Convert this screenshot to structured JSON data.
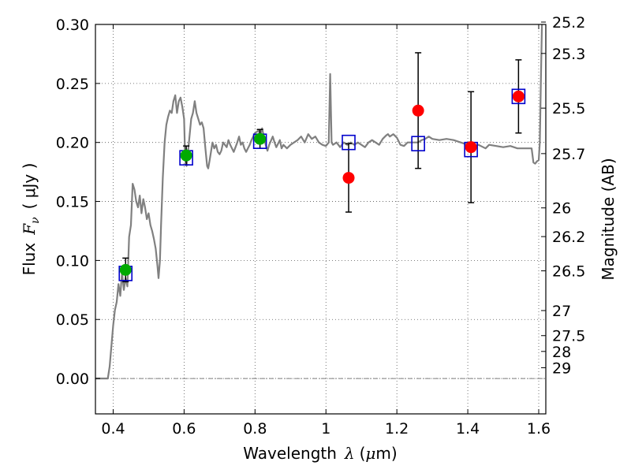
{
  "chart_data": {
    "type": "scatter",
    "xlabel": {
      "text": "Wavelength",
      "symbol": "λ",
      "unit_prefix": "(",
      "unit_math": "μ",
      "unit_text": "m)"
    },
    "ylabel": {
      "text": "Flux",
      "symbol": "F",
      "subscript": "ν",
      "unit": "( μJy )"
    },
    "ylabel_right": "Magnitude (AB)",
    "xlim": [
      0.35,
      1.62
    ],
    "ylim": [
      -0.03,
      0.3
    ],
    "grid": true,
    "x_ticks": [
      {
        "value": 0.4,
        "label": "0.4"
      },
      {
        "value": 0.6,
        "label": "0.6"
      },
      {
        "value": 0.8,
        "label": "0.8"
      },
      {
        "value": 1.0,
        "label": "1"
      },
      {
        "value": 1.2,
        "label": "1.2"
      },
      {
        "value": 1.4,
        "label": "1.4"
      },
      {
        "value": 1.6,
        "label": "1.6"
      }
    ],
    "y_ticks": [
      {
        "value": 0.0,
        "label": "0.00"
      },
      {
        "value": 0.05,
        "label": "0.05"
      },
      {
        "value": 0.1,
        "label": "0.10"
      },
      {
        "value": 0.15,
        "label": "0.15"
      },
      {
        "value": 0.2,
        "label": "0.20"
      },
      {
        "value": 0.25,
        "label": "0.25"
      },
      {
        "value": 0.3,
        "label": "0.30"
      }
    ],
    "mag_ticks": [
      {
        "mag": 25.2,
        "label": "25.2"
      },
      {
        "mag": 25.3,
        "label": "25.3"
      },
      {
        "mag": 25.5,
        "label": "25.5"
      },
      {
        "mag": 25.7,
        "label": "25.7"
      },
      {
        "mag": 26.0,
        "label": "26"
      },
      {
        "mag": 26.2,
        "label": "26.2"
      },
      {
        "mag": 26.5,
        "label": "26.5"
      },
      {
        "mag": 27.0,
        "label": "27"
      },
      {
        "mag": 27.5,
        "label": "27.5"
      },
      {
        "mag": 28.0,
        "label": "28"
      },
      {
        "mag": 29.0,
        "label": "29"
      }
    ],
    "zero_line": 0.0,
    "colors": {
      "model": "#808080",
      "model_points": "#0000cc",
      "optical": "#00aa00",
      "nir": "#ff0000",
      "errorbar": "#000000",
      "grid": "#555555"
    },
    "model_spectrum": [
      [
        0.35,
        0.0
      ],
      [
        0.385,
        0.0
      ],
      [
        0.39,
        0.01
      ],
      [
        0.4,
        0.045
      ],
      [
        0.405,
        0.058
      ],
      [
        0.41,
        0.065
      ],
      [
        0.415,
        0.08
      ],
      [
        0.42,
        0.07
      ],
      [
        0.425,
        0.09
      ],
      [
        0.43,
        0.075
      ],
      [
        0.435,
        0.085
      ],
      [
        0.44,
        0.078
      ],
      [
        0.445,
        0.12
      ],
      [
        0.45,
        0.13
      ],
      [
        0.455,
        0.165
      ],
      [
        0.46,
        0.16
      ],
      [
        0.465,
        0.15
      ],
      [
        0.47,
        0.145
      ],
      [
        0.475,
        0.155
      ],
      [
        0.48,
        0.14
      ],
      [
        0.485,
        0.152
      ],
      [
        0.49,
        0.145
      ],
      [
        0.495,
        0.135
      ],
      [
        0.5,
        0.14
      ],
      [
        0.505,
        0.13
      ],
      [
        0.51,
        0.125
      ],
      [
        0.515,
        0.118
      ],
      [
        0.52,
        0.11
      ],
      [
        0.525,
        0.095
      ],
      [
        0.528,
        0.085
      ],
      [
        0.532,
        0.1
      ],
      [
        0.535,
        0.13
      ],
      [
        0.54,
        0.17
      ],
      [
        0.545,
        0.2
      ],
      [
        0.55,
        0.215
      ],
      [
        0.555,
        0.222
      ],
      [
        0.56,
        0.227
      ],
      [
        0.565,
        0.225
      ],
      [
        0.57,
        0.235
      ],
      [
        0.575,
        0.24
      ],
      [
        0.58,
        0.225
      ],
      [
        0.585,
        0.235
      ],
      [
        0.59,
        0.238
      ],
      [
        0.595,
        0.23
      ],
      [
        0.6,
        0.22
      ],
      [
        0.603,
        0.185
      ],
      [
        0.607,
        0.18
      ],
      [
        0.612,
        0.195
      ],
      [
        0.62,
        0.22
      ],
      [
        0.625,
        0.225
      ],
      [
        0.63,
        0.235
      ],
      [
        0.635,
        0.225
      ],
      [
        0.64,
        0.22
      ],
      [
        0.645,
        0.215
      ],
      [
        0.65,
        0.217
      ],
      [
        0.655,
        0.212
      ],
      [
        0.66,
        0.195
      ],
      [
        0.665,
        0.18
      ],
      [
        0.668,
        0.178
      ],
      [
        0.672,
        0.185
      ],
      [
        0.68,
        0.2
      ],
      [
        0.685,
        0.195
      ],
      [
        0.69,
        0.198
      ],
      [
        0.695,
        0.192
      ],
      [
        0.7,
        0.19
      ],
      [
        0.705,
        0.193
      ],
      [
        0.71,
        0.2
      ],
      [
        0.715,
        0.198
      ],
      [
        0.72,
        0.196
      ],
      [
        0.725,
        0.202
      ],
      [
        0.73,
        0.198
      ],
      [
        0.735,
        0.195
      ],
      [
        0.74,
        0.192
      ],
      [
        0.745,
        0.196
      ],
      [
        0.75,
        0.2
      ],
      [
        0.755,
        0.205
      ],
      [
        0.76,
        0.198
      ],
      [
        0.765,
        0.2
      ],
      [
        0.77,
        0.195
      ],
      [
        0.775,
        0.192
      ],
      [
        0.78,
        0.195
      ],
      [
        0.785,
        0.198
      ],
      [
        0.79,
        0.202
      ],
      [
        0.8,
        0.208
      ],
      [
        0.81,
        0.21
      ],
      [
        0.815,
        0.206
      ],
      [
        0.82,
        0.212
      ],
      [
        0.825,
        0.205
      ],
      [
        0.83,
        0.198
      ],
      [
        0.835,
        0.193
      ],
      [
        0.84,
        0.198
      ],
      [
        0.85,
        0.205
      ],
      [
        0.855,
        0.2
      ],
      [
        0.86,
        0.196
      ],
      [
        0.87,
        0.202
      ],
      [
        0.875,
        0.195
      ],
      [
        0.88,
        0.198
      ],
      [
        0.89,
        0.195
      ],
      [
        0.9,
        0.198
      ],
      [
        0.91,
        0.2
      ],
      [
        0.92,
        0.202
      ],
      [
        0.93,
        0.205
      ],
      [
        0.94,
        0.2
      ],
      [
        0.95,
        0.207
      ],
      [
        0.96,
        0.203
      ],
      [
        0.97,
        0.205
      ],
      [
        0.98,
        0.2
      ],
      [
        0.99,
        0.198
      ],
      [
        1.0,
        0.197
      ],
      [
        1.008,
        0.2
      ],
      [
        1.012,
        0.258
      ],
      [
        1.016,
        0.2
      ],
      [
        1.02,
        0.198
      ],
      [
        1.03,
        0.2
      ],
      [
        1.04,
        0.196
      ],
      [
        1.05,
        0.2
      ],
      [
        1.06,
        0.198
      ],
      [
        1.07,
        0.2
      ],
      [
        1.08,
        0.198
      ],
      [
        1.09,
        0.2
      ],
      [
        1.1,
        0.198
      ],
      [
        1.11,
        0.196
      ],
      [
        1.12,
        0.2
      ],
      [
        1.13,
        0.202
      ],
      [
        1.14,
        0.2
      ],
      [
        1.15,
        0.198
      ],
      [
        1.16,
        0.203
      ],
      [
        1.17,
        0.206
      ],
      [
        1.175,
        0.207
      ],
      [
        1.18,
        0.205
      ],
      [
        1.19,
        0.207
      ],
      [
        1.2,
        0.204
      ],
      [
        1.21,
        0.198
      ],
      [
        1.22,
        0.197
      ],
      [
        1.23,
        0.2
      ],
      [
        1.24,
        0.2
      ],
      [
        1.25,
        0.2
      ],
      [
        1.26,
        0.2
      ],
      [
        1.27,
        0.202
      ],
      [
        1.28,
        0.203
      ],
      [
        1.29,
        0.205
      ],
      [
        1.3,
        0.203
      ],
      [
        1.32,
        0.202
      ],
      [
        1.34,
        0.203
      ],
      [
        1.36,
        0.202
      ],
      [
        1.38,
        0.2
      ],
      [
        1.4,
        0.198
      ],
      [
        1.42,
        0.197
      ],
      [
        1.43,
        0.198
      ],
      [
        1.45,
        0.195
      ],
      [
        1.46,
        0.198
      ],
      [
        1.48,
        0.197
      ],
      [
        1.5,
        0.196
      ],
      [
        1.52,
        0.197
      ],
      [
        1.54,
        0.195
      ],
      [
        1.56,
        0.195
      ],
      [
        1.58,
        0.195
      ],
      [
        1.585,
        0.183
      ],
      [
        1.59,
        0.182
      ],
      [
        1.595,
        0.184
      ],
      [
        1.6,
        0.185
      ],
      [
        1.603,
        0.2
      ],
      [
        1.606,
        0.25
      ],
      [
        1.609,
        0.3
      ]
    ],
    "model_points": [
      {
        "x": 0.435,
        "y": 0.089
      },
      {
        "x": 0.606,
        "y": 0.187
      },
      {
        "x": 0.814,
        "y": 0.201
      },
      {
        "x": 1.064,
        "y": 0.2
      },
      {
        "x": 1.26,
        "y": 0.199
      },
      {
        "x": 1.409,
        "y": 0.194
      },
      {
        "x": 1.543,
        "y": 0.239
      }
    ],
    "observed": [
      {
        "x": 0.435,
        "y": 0.092,
        "err": 0.01,
        "group": "optical"
      },
      {
        "x": 0.606,
        "y": 0.189,
        "err": 0.008,
        "group": "optical"
      },
      {
        "x": 0.814,
        "y": 0.203,
        "err": 0.008,
        "group": "optical"
      },
      {
        "x": 1.064,
        "y": 0.17,
        "err": 0.029,
        "group": "nir"
      },
      {
        "x": 1.26,
        "y": 0.227,
        "err": 0.049,
        "group": "nir"
      },
      {
        "x": 1.409,
        "y": 0.196,
        "err": 0.047,
        "group": "nir"
      },
      {
        "x": 1.543,
        "y": 0.239,
        "err": 0.031,
        "group": "nir"
      }
    ]
  }
}
